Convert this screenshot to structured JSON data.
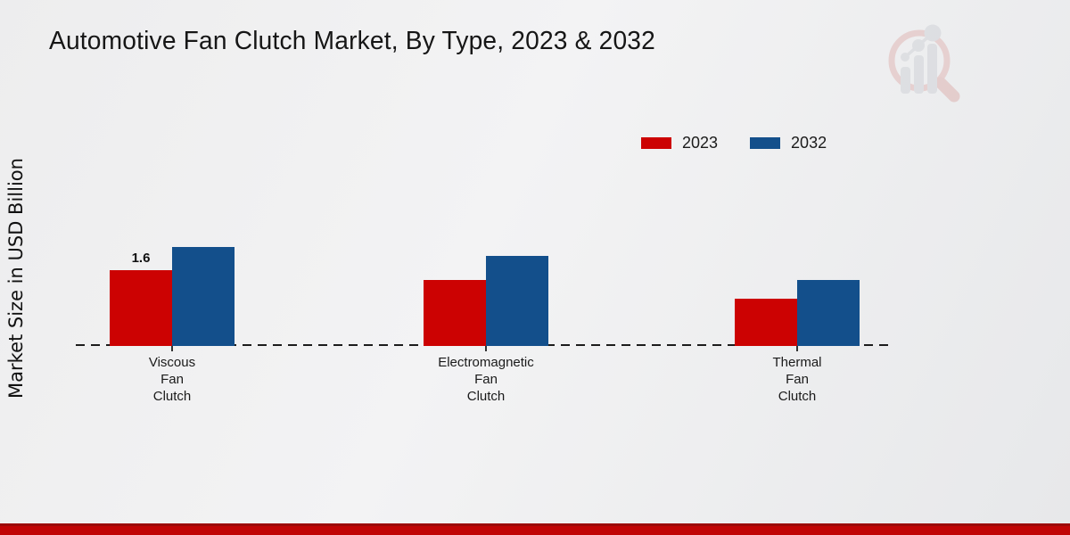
{
  "page": {
    "title": "Automotive Fan Clutch Market, By Type, 2023 & 2032"
  },
  "legend": {
    "items": [
      {
        "label": "2023",
        "color": "#cc0202"
      },
      {
        "label": "2032",
        "color": "#134f8b"
      }
    ]
  },
  "chart_data": {
    "type": "bar",
    "title": "Automotive Fan Clutch Market, By Type, 2023 & 2032",
    "xlabel": "",
    "ylabel": "Market Size in USD Billion",
    "unit": "USD Billion",
    "categories": [
      "Viscous Fan Clutch",
      "Electromagnetic Fan Clutch",
      "Thermal Fan Clutch"
    ],
    "category_label_lines": [
      [
        "Viscous",
        "Fan",
        "Clutch"
      ],
      [
        "Electromagnetic",
        "Fan",
        "Clutch"
      ],
      [
        "Thermal",
        "Fan",
        "Clutch"
      ]
    ],
    "series": [
      {
        "name": "2023",
        "color": "#cc0202",
        "values": [
          1.6,
          1.4,
          1.0
        ],
        "data_labels": [
          "1.6",
          "",
          ""
        ]
      },
      {
        "name": "2032",
        "color": "#134f8b",
        "values": [
          2.1,
          1.9,
          1.4
        ],
        "data_labels": [
          "",
          "",
          ""
        ]
      }
    ],
    "ylim": [
      0,
      2.5
    ],
    "grid": false,
    "legend_position": "top-right",
    "baseline_style": "dashed",
    "baseline_color": "#1a1a1a"
  },
  "footer": {
    "band_color": "#c10505"
  },
  "icons": {
    "watermark": "magnifier-bar-chart-logo"
  }
}
